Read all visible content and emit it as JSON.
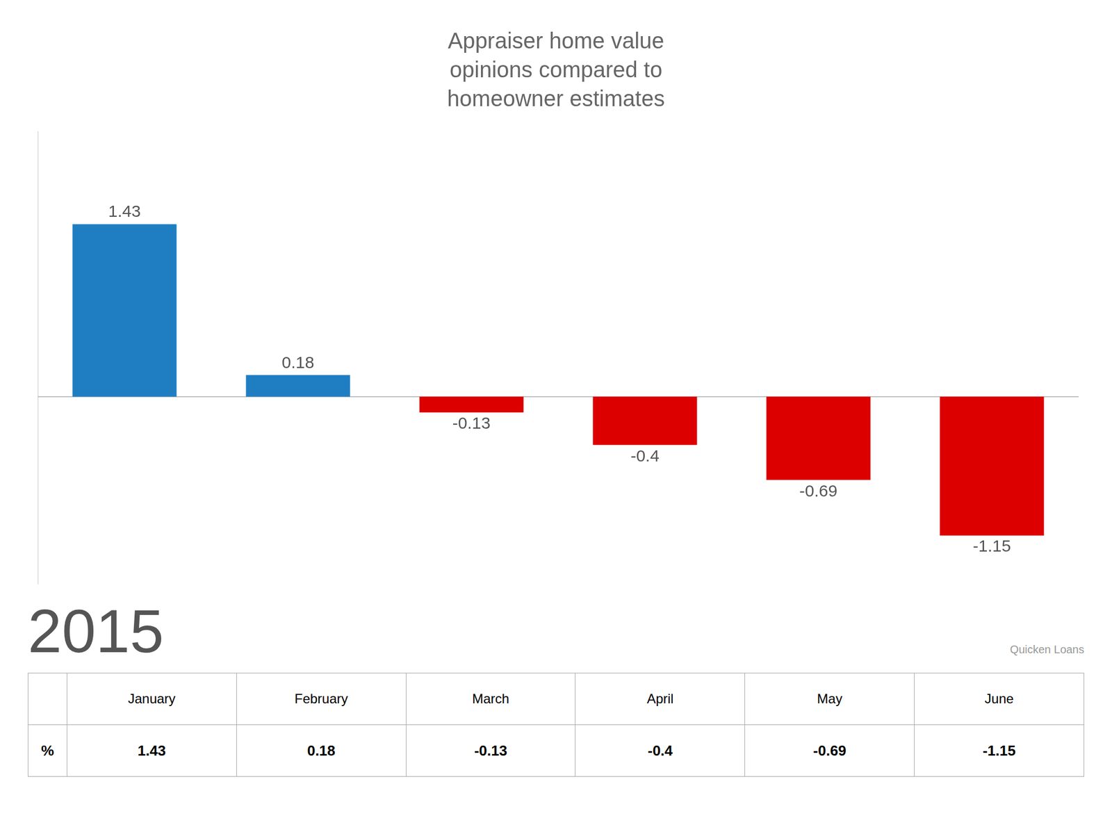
{
  "chart_data": {
    "type": "bar",
    "title": "Appraiser home value\nopinions compared to\nhomeowner estimates",
    "categories": [
      "January",
      "February",
      "March",
      "April",
      "May",
      "June"
    ],
    "values": [
      1.43,
      0.18,
      -0.13,
      -0.4,
      -0.69,
      -1.15
    ],
    "colors": [
      "#1f7ec2",
      "#1f7ec2",
      "#dd0000",
      "#dd0000",
      "#dd0000",
      "#dd0000"
    ],
    "ylim": [
      -1.55,
      2.2
    ],
    "grid": false,
    "data_labels": true,
    "tick_labels": false,
    "annotations": [
      "2015",
      "Quicken Loans",
      "%"
    ]
  }
}
